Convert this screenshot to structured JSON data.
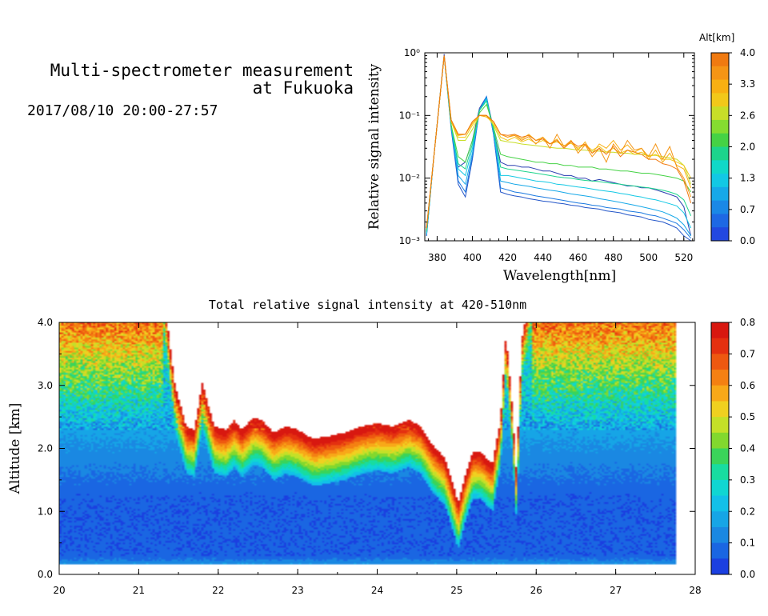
{
  "header": {
    "title_line1": "Multi-spectrometer measurement",
    "title_line2": "at Fukuoka",
    "datetime": "2017/08/10 20:00-27:57"
  },
  "chart_data": [
    {
      "type": "line",
      "title": "",
      "xlabel": "Wavelength[nm]",
      "ylabel": "Relative signal intensity",
      "xlim": [
        373,
        526
      ],
      "ylim": [
        0.001,
        1
      ],
      "yscale": "log",
      "x_ticks": [
        "380",
        "400",
        "420",
        "440",
        "460",
        "480",
        "500",
        "520"
      ],
      "y_ticks": [
        "10⁻³",
        "10⁻²",
        "10⁻¹",
        "10⁰"
      ],
      "legend": "colorbar-right",
      "colorbar": {
        "title": "Alt[km]",
        "tick_labels": [
          "4.0",
          "3.3",
          "2.6",
          "2.0",
          "1.3",
          "0.7",
          "0.0"
        ],
        "colors": [
          "#f07a10",
          "#f59515",
          "#f8b012",
          "#f2c81a",
          "#c8de28",
          "#85dc30",
          "#45d245",
          "#1dd48c",
          "#10d8c8",
          "#12c8e4",
          "#16a8e8",
          "#1a88e6",
          "#1e68e4",
          "#2248e0"
        ]
      },
      "x": [
        374,
        378,
        384,
        388,
        392,
        396,
        400,
        404,
        408,
        412,
        416,
        420,
        424,
        428,
        432,
        436,
        440,
        444,
        448,
        452,
        456,
        460,
        464,
        468,
        472,
        476,
        480,
        484,
        488,
        492,
        496,
        500,
        504,
        508,
        512,
        516,
        520,
        524
      ],
      "series": [
        {
          "color": "#2a3fb0",
          "values": [
            0.0014,
            0.02,
            0.95,
            0.07,
            0.015,
            0.018,
            0.04,
            0.13,
            0.2,
            0.06,
            0.018,
            0.016,
            0.016,
            0.015,
            0.015,
            0.014,
            0.013,
            0.013,
            0.012,
            0.011,
            0.011,
            0.01,
            0.01,
            0.009,
            0.0095,
            0.009,
            0.0085,
            0.008,
            0.0075,
            0.0075,
            0.007,
            0.007,
            0.0065,
            0.006,
            0.0055,
            0.005,
            0.0035,
            0.0012
          ]
        },
        {
          "color": "#2255c8",
          "values": [
            0.0012,
            0.02,
            0.9,
            0.06,
            0.008,
            0.005,
            0.02,
            0.12,
            0.2,
            0.05,
            0.006,
            0.0055,
            0.0052,
            0.005,
            0.0047,
            0.0045,
            0.0043,
            0.0042,
            0.004,
            0.0039,
            0.0037,
            0.0036,
            0.0034,
            0.0033,
            0.0032,
            0.003,
            0.0029,
            0.0028,
            0.0026,
            0.0025,
            0.0024,
            0.0022,
            0.0021,
            0.002,
            0.0018,
            0.0016,
            0.0012,
            0.001
          ]
        },
        {
          "color": "#1a78e0",
          "values": [
            0.0012,
            0.02,
            0.9,
            0.065,
            0.009,
            0.006,
            0.022,
            0.12,
            0.2,
            0.05,
            0.007,
            0.0065,
            0.006,
            0.0058,
            0.0055,
            0.0052,
            0.005,
            0.0048,
            0.0046,
            0.0044,
            0.0042,
            0.004,
            0.0039,
            0.0037,
            0.0036,
            0.0034,
            0.0033,
            0.0032,
            0.003,
            0.0029,
            0.0028,
            0.0026,
            0.0025,
            0.0023,
            0.0021,
            0.0019,
            0.0015,
            0.0011
          ]
        },
        {
          "color": "#16a8e8",
          "values": [
            0.0013,
            0.02,
            0.9,
            0.065,
            0.011,
            0.008,
            0.025,
            0.12,
            0.19,
            0.055,
            0.009,
            0.0085,
            0.008,
            0.0077,
            0.0074,
            0.007,
            0.0067,
            0.0064,
            0.0062,
            0.0059,
            0.0056,
            0.0054,
            0.0052,
            0.005,
            0.0047,
            0.0045,
            0.0043,
            0.0041,
            0.0039,
            0.0037,
            0.0035,
            0.0033,
            0.0031,
            0.0029,
            0.0026,
            0.0023,
            0.0018,
            0.0012
          ]
        },
        {
          "color": "#12c8e4",
          "values": [
            0.0013,
            0.02,
            0.9,
            0.068,
            0.014,
            0.011,
            0.03,
            0.12,
            0.18,
            0.06,
            0.011,
            0.011,
            0.0105,
            0.01,
            0.0095,
            0.009,
            0.0088,
            0.0085,
            0.008,
            0.0078,
            0.0075,
            0.0072,
            0.007,
            0.0067,
            0.0064,
            0.0062,
            0.006,
            0.0057,
            0.0055,
            0.0052,
            0.005,
            0.0047,
            0.0045,
            0.0042,
            0.0039,
            0.0036,
            0.0028,
            0.0016
          ]
        },
        {
          "color": "#1dd48c",
          "values": [
            0.0014,
            0.02,
            0.9,
            0.07,
            0.017,
            0.014,
            0.035,
            0.12,
            0.17,
            0.06,
            0.015,
            0.014,
            0.0135,
            0.013,
            0.0125,
            0.012,
            0.0115,
            0.011,
            0.0105,
            0.0102,
            0.01,
            0.0095,
            0.0092,
            0.009,
            0.0088,
            0.0085,
            0.0082,
            0.008,
            0.0077,
            0.0075,
            0.0072,
            0.007,
            0.0067,
            0.0064,
            0.006,
            0.0055,
            0.0045,
            0.0025
          ]
        },
        {
          "color": "#45d245",
          "values": [
            0.0015,
            0.02,
            0.9,
            0.07,
            0.022,
            0.018,
            0.04,
            0.11,
            0.15,
            0.065,
            0.024,
            0.022,
            0.021,
            0.02,
            0.019,
            0.018,
            0.018,
            0.017,
            0.017,
            0.016,
            0.016,
            0.015,
            0.015,
            0.015,
            0.014,
            0.014,
            0.0135,
            0.013,
            0.013,
            0.0125,
            0.012,
            0.012,
            0.0115,
            0.011,
            0.0105,
            0.01,
            0.009,
            0.006
          ]
        },
        {
          "color": "#c8de28",
          "values": [
            0.0016,
            0.02,
            0.9,
            0.08,
            0.04,
            0.04,
            0.06,
            0.1,
            0.1,
            0.07,
            0.04,
            0.038,
            0.037,
            0.035,
            0.034,
            0.033,
            0.032,
            0.031,
            0.03,
            0.03,
            0.029,
            0.028,
            0.028,
            0.027,
            0.027,
            0.026,
            0.026,
            0.025,
            0.025,
            0.024,
            0.024,
            0.023,
            0.023,
            0.022,
            0.021,
            0.02,
            0.016,
            0.008
          ]
        },
        {
          "color": "#f2c81a",
          "values": [
            0.0016,
            0.02,
            0.9,
            0.08,
            0.045,
            0.045,
            0.07,
            0.1,
            0.095,
            0.075,
            0.045,
            0.04,
            0.045,
            0.038,
            0.042,
            0.036,
            0.04,
            0.035,
            0.038,
            0.033,
            0.036,
            0.03,
            0.034,
            0.028,
            0.032,
            0.026,
            0.03,
            0.025,
            0.028,
            0.024,
            0.026,
            0.022,
            0.024,
            0.02,
            0.02,
            0.018,
            0.016,
            0.01
          ]
        },
        {
          "color": "#f8b012",
          "values": [
            0.0016,
            0.02,
            0.9,
            0.08,
            0.048,
            0.05,
            0.075,
            0.1,
            0.095,
            0.08,
            0.05,
            0.045,
            0.05,
            0.042,
            0.05,
            0.04,
            0.045,
            0.035,
            0.042,
            0.03,
            0.04,
            0.028,
            0.038,
            0.025,
            0.035,
            0.03,
            0.04,
            0.028,
            0.034,
            0.026,
            0.03,
            0.02,
            0.028,
            0.018,
            0.025,
            0.016,
            0.014,
            0.007
          ]
        },
        {
          "color": "#f59515",
          "values": [
            0.0016,
            0.02,
            0.9,
            0.085,
            0.05,
            0.05,
            0.08,
            0.1,
            0.1,
            0.08,
            0.05,
            0.045,
            0.048,
            0.04,
            0.046,
            0.035,
            0.045,
            0.03,
            0.05,
            0.032,
            0.04,
            0.025,
            0.034,
            0.022,
            0.03,
            0.018,
            0.035,
            0.025,
            0.04,
            0.028,
            0.03,
            0.022,
            0.035,
            0.02,
            0.032,
            0.015,
            0.01,
            0.005
          ]
        },
        {
          "color": "#f07a10",
          "values": [
            0.0016,
            0.02,
            0.9,
            0.085,
            0.05,
            0.05,
            0.08,
            0.1,
            0.1,
            0.08,
            0.05,
            0.048,
            0.05,
            0.045,
            0.048,
            0.04,
            0.042,
            0.035,
            0.04,
            0.03,
            0.038,
            0.032,
            0.035,
            0.025,
            0.03,
            0.024,
            0.032,
            0.022,
            0.028,
            0.026,
            0.024,
            0.02,
            0.02,
            0.017,
            0.016,
            0.014,
            0.009,
            0.004
          ]
        }
      ]
    },
    {
      "type": "heatmap",
      "title": "Total relative signal intensity at 420-510nm",
      "xlabel": "",
      "ylabel": "Altitude [km]",
      "xlim": [
        20,
        28
      ],
      "ylim": [
        0,
        4
      ],
      "x_ticks": [
        "20",
        "21",
        "22",
        "23",
        "24",
        "25",
        "26",
        "27",
        "28"
      ],
      "y_ticks": [
        "0.0",
        "1.0",
        "2.0",
        "3.0",
        "4.0"
      ],
      "data_x_end": 27.76,
      "valid_alt_range": [
        0.15,
        4.0
      ],
      "colorbar": {
        "range": [
          0,
          0.8
        ],
        "tick_labels": [
          "0.0",
          "0.1",
          "0.2",
          "0.3",
          "0.4",
          "0.5",
          "0.6",
          "0.7",
          "0.8"
        ],
        "colors": [
          "#1b3fe0",
          "#1a66e2",
          "#1a88e2",
          "#16a5e6",
          "#12c0e8",
          "#10d6d2",
          "#18dca0",
          "#3ad45a",
          "#82d82e",
          "#c4e028",
          "#f0d020",
          "#f8a818",
          "#f48012",
          "#ee5810",
          "#e43010",
          "#d81810"
        ]
      },
      "cloud_base_km": {
        "times": [
          20.0,
          20.4,
          20.8,
          21.1,
          21.3,
          21.45,
          21.6,
          21.7,
          21.8,
          21.95,
          22.1,
          22.2,
          22.3,
          22.45,
          22.55,
          22.7,
          22.85,
          23.0,
          23.2,
          23.4,
          23.6,
          23.8,
          24.0,
          24.2,
          24.4,
          24.55,
          24.7,
          24.85,
          24.95,
          25.02,
          25.1,
          25.2,
          25.3,
          25.45,
          25.55,
          25.62,
          25.7,
          25.75,
          25.82,
          25.95,
          26.2,
          26.6,
          27.0,
          27.4,
          27.76
        ],
        "values": [
          4.6,
          4.6,
          4.6,
          4.6,
          4.6,
          3.0,
          2.3,
          2.25,
          3.0,
          2.3,
          2.25,
          2.4,
          2.25,
          2.45,
          2.4,
          2.2,
          2.3,
          2.25,
          2.1,
          2.15,
          2.2,
          2.3,
          2.35,
          2.3,
          2.4,
          2.3,
          2.0,
          1.8,
          1.4,
          1.1,
          1.5,
          1.9,
          1.9,
          1.7,
          2.4,
          3.8,
          2.6,
          1.6,
          3.7,
          4.6,
          4.6,
          4.6,
          4.6,
          4.6,
          4.6
        ]
      }
    }
  ]
}
